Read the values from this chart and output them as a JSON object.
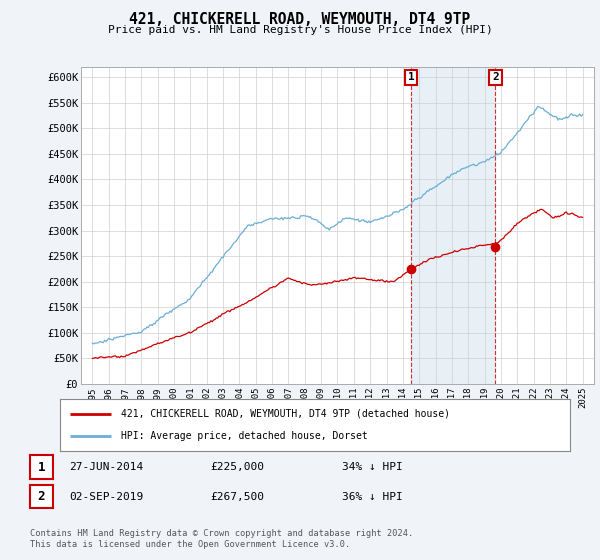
{
  "title": "421, CHICKERELL ROAD, WEYMOUTH, DT4 9TP",
  "subtitle": "Price paid vs. HM Land Registry's House Price Index (HPI)",
  "ylabel_ticks": [
    "£0",
    "£50K",
    "£100K",
    "£150K",
    "£200K",
    "£250K",
    "£300K",
    "£350K",
    "£400K",
    "£450K",
    "£500K",
    "£550K",
    "£600K"
  ],
  "ytick_values": [
    0,
    50000,
    100000,
    150000,
    200000,
    250000,
    300000,
    350000,
    400000,
    450000,
    500000,
    550000,
    600000
  ],
  "year_start": 1995,
  "year_end": 2025,
  "hpi_color": "#6baed6",
  "hpi_fill_color": "#deeaf5",
  "price_color": "#cc0000",
  "sale1_year": 2014.5,
  "sale1_price": 225000,
  "sale2_year": 2019.67,
  "sale2_price": 267500,
  "legend_label1": "421, CHICKERELL ROAD, WEYMOUTH, DT4 9TP (detached house)",
  "legend_label2": "HPI: Average price, detached house, Dorset",
  "ann1_date": "27-JUN-2014",
  "ann1_price": "£225,000",
  "ann1_note": "34% ↓ HPI",
  "ann2_date": "02-SEP-2019",
  "ann2_price": "£267,500",
  "ann2_note": "36% ↓ HPI",
  "footer": "Contains HM Land Registry data © Crown copyright and database right 2024.\nThis data is licensed under the Open Government Licence v3.0.",
  "background_color": "#f0f4f8",
  "plot_bg_color": "#ffffff"
}
